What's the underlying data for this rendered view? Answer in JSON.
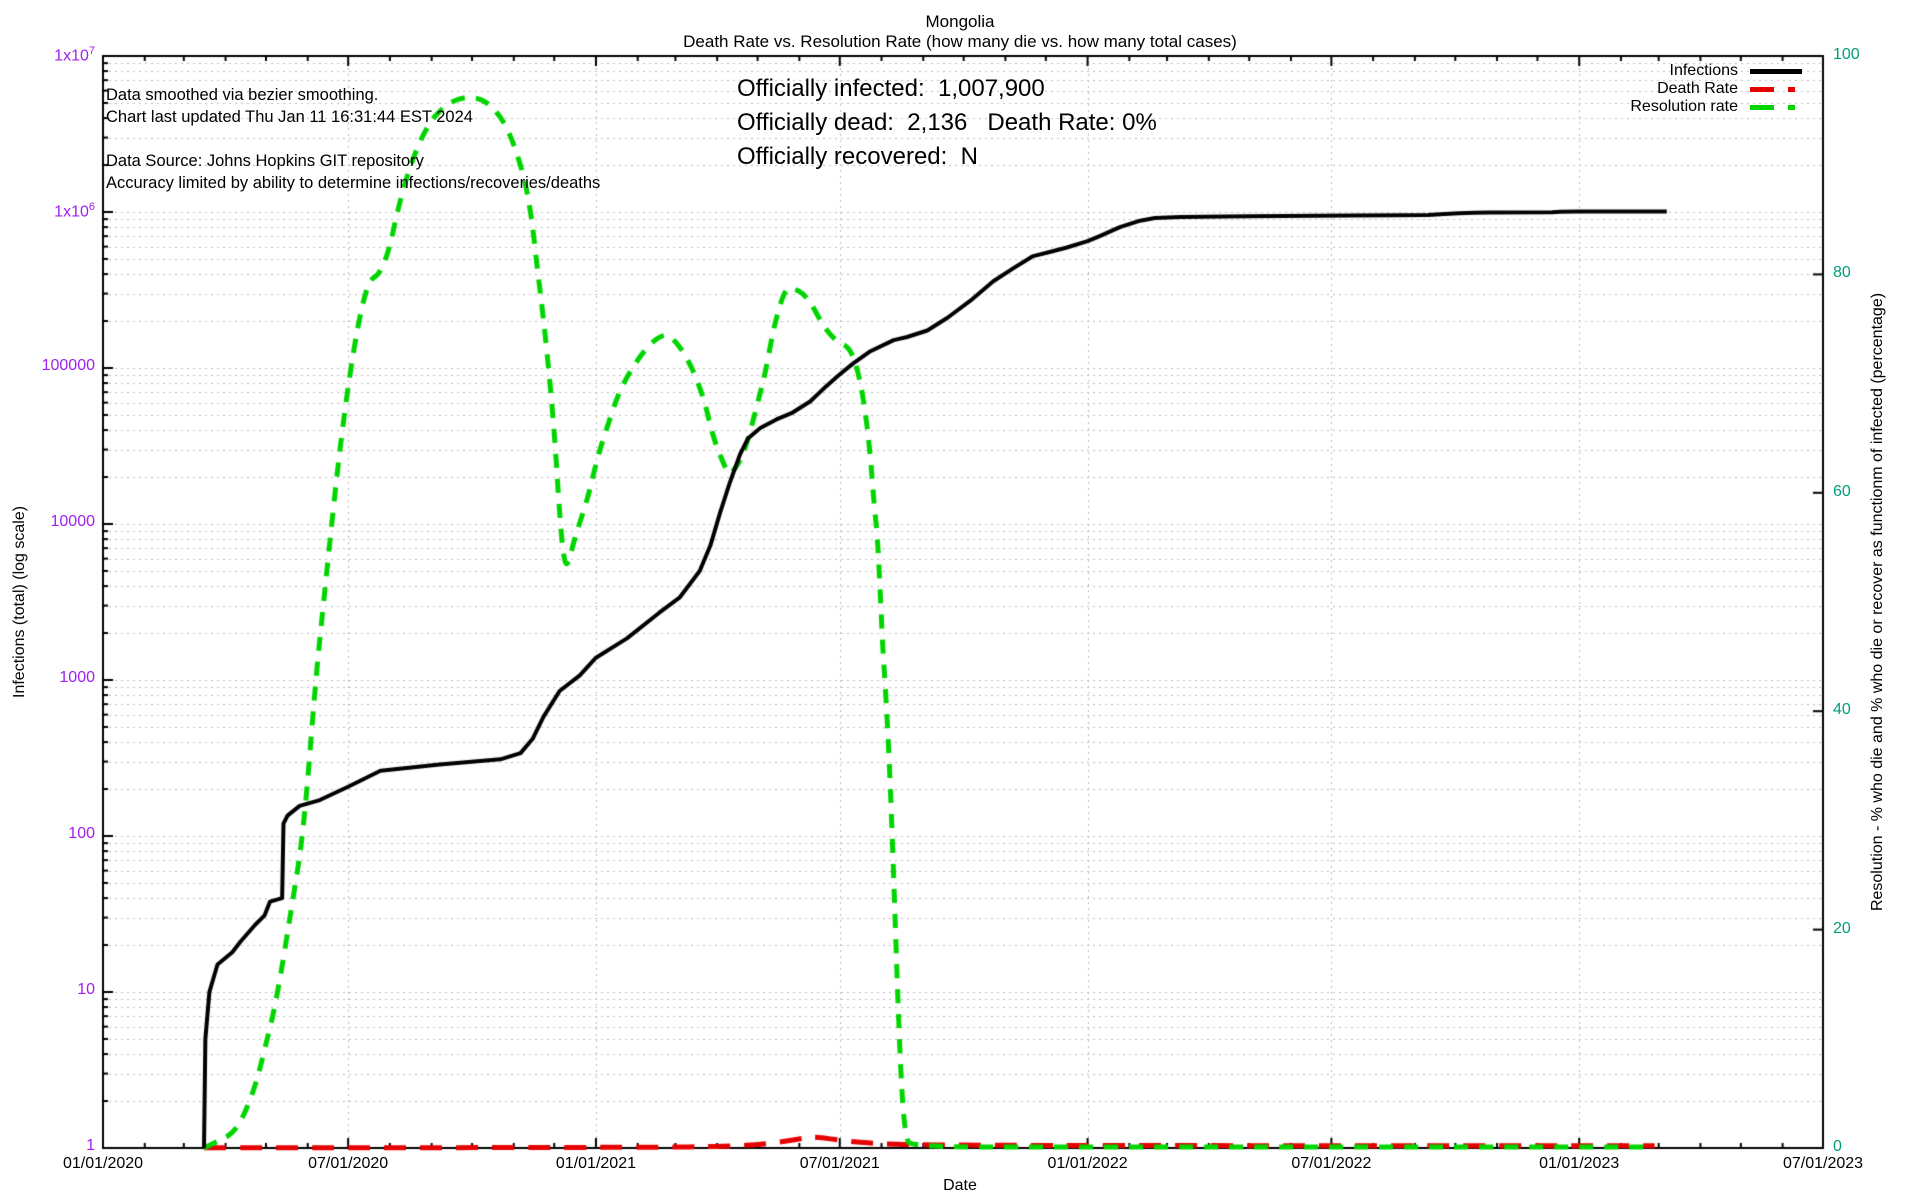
{
  "annotations": {
    "lines": [
      "Data smoothed via bezier smoothing.",
      "Chart last updated Thu Jan 11 16:31:44 EST 2024",
      "",
      "Data Source: Johns Hopkins GIT repository",
      "Accuracy limited by ability to determine infections/recoveries/deaths"
    ]
  },
  "stats": {
    "lines": [
      "Officially infected:  1,007,900",
      "Officially dead:  2,136   Death Rate: 0%",
      "Officially recovered:  N"
    ]
  },
  "chart_data": {
    "type": "line",
    "title": "Mongolia",
    "subtitle": "Death Rate vs. Resolution Rate (how many die vs. how many total cases)",
    "xlabel": "Date",
    "ylabel_left": "Infections (total) (log scale)",
    "ylabel_right": "Resolution - % who die and % who die or recover as functionm of infected (percentage)",
    "x_axis": {
      "start_label": "01/01/2020",
      "end_label": "07/01/2023",
      "total_days": 1277,
      "major_tick_days": [
        0,
        182,
        366,
        547,
        731,
        912,
        1096,
        1277
      ],
      "major_tick_labels": [
        "01/01/2020",
        "07/01/2020",
        "01/01/2021",
        "07/01/2021",
        "01/01/2022",
        "07/01/2022",
        "01/01/2023",
        "07/01/2023"
      ],
      "minor_ticks": "monthly",
      "grid": "dotted vertical at major ticks"
    },
    "y_axis_left": {
      "scale": "log",
      "range": [
        1,
        10000000
      ],
      "tick_values": [
        1,
        10,
        100,
        1000,
        10000,
        100000,
        1000000,
        10000000
      ],
      "tick_labels": [
        "1",
        "10",
        "100",
        "1000",
        "10000",
        "100000",
        "1x10^6",
        "1x10^7"
      ],
      "label_color": "#a020f0",
      "grid": "dotted horizontal at major and minor log ticks"
    },
    "y_axis_right": {
      "scale": "linear",
      "range": [
        0,
        100
      ],
      "tick_values": [
        0,
        20,
        40,
        60,
        80,
        100
      ],
      "tick_labels": [
        "0",
        "20",
        "40",
        "60",
        "80",
        "100"
      ],
      "label_color": "#009e7a"
    },
    "colors": {
      "grid": "#bcbcbc",
      "border": "#000000"
    },
    "series": [
      {
        "name": "Infections",
        "color": "#000000",
        "style": "solid",
        "axis": "left",
        "points": [
          [
            75,
            1
          ],
          [
            76,
            5
          ],
          [
            79,
            10
          ],
          [
            85,
            15
          ],
          [
            96,
            18
          ],
          [
            102,
            21
          ],
          [
            113,
            27
          ],
          [
            120,
            31
          ],
          [
            124,
            38
          ],
          [
            133,
            40
          ],
          [
            134,
            120
          ],
          [
            137,
            135
          ],
          [
            146,
            156
          ],
          [
            161,
            170
          ],
          [
            182,
            207
          ],
          [
            206,
            262
          ],
          [
            250,
            287
          ],
          [
            295,
            310
          ],
          [
            310,
            340
          ],
          [
            319,
            420
          ],
          [
            327,
            580
          ],
          [
            339,
            850
          ],
          [
            354,
            1070
          ],
          [
            366,
            1390
          ],
          [
            389,
            1850
          ],
          [
            413,
            2700
          ],
          [
            428,
            3370
          ],
          [
            443,
            5000
          ],
          [
            451,
            7300
          ],
          [
            458,
            11700
          ],
          [
            465,
            18000
          ],
          [
            473,
            28000
          ],
          [
            479,
            35500
          ],
          [
            488,
            41300
          ],
          [
            500,
            46800
          ],
          [
            512,
            51800
          ],
          [
            525,
            61000
          ],
          [
            537,
            76500
          ],
          [
            546,
            89500
          ],
          [
            557,
            107000
          ],
          [
            569,
            127000
          ],
          [
            587,
            151000
          ],
          [
            597,
            158000
          ],
          [
            612,
            174000
          ],
          [
            627,
            210000
          ],
          [
            644,
            270000
          ],
          [
            661,
            360000
          ],
          [
            676,
            437000
          ],
          [
            690,
            519000
          ],
          [
            705,
            560000
          ],
          [
            715,
            590000
          ],
          [
            731,
            650000
          ],
          [
            740,
            700000
          ],
          [
            755,
            800000
          ],
          [
            770,
            880000
          ],
          [
            781,
            915000
          ],
          [
            800,
            930000
          ],
          [
            851,
            940000
          ],
          [
            926,
            948000
          ],
          [
            963,
            953000
          ],
          [
            984,
            958000
          ],
          [
            996,
            972000
          ],
          [
            1007,
            982000
          ],
          [
            1018,
            990000
          ],
          [
            1030,
            994000
          ],
          [
            1076,
            996000
          ],
          [
            1082,
            1004000
          ],
          [
            1096,
            1006000
          ],
          [
            1161,
            1007900
          ]
        ]
      },
      {
        "name": "Death Rate",
        "color": "#e60000",
        "style": "dashed",
        "axis": "right",
        "points": [
          [
            75,
            0.02
          ],
          [
            150,
            0.02
          ],
          [
            250,
            0.03
          ],
          [
            350,
            0.05
          ],
          [
            420,
            0.08
          ],
          [
            450,
            0.12
          ],
          [
            470,
            0.2
          ],
          [
            485,
            0.3
          ],
          [
            495,
            0.42
          ],
          [
            505,
            0.58
          ],
          [
            515,
            0.8
          ],
          [
            523,
            0.95
          ],
          [
            528,
            1.0
          ],
          [
            535,
            0.92
          ],
          [
            545,
            0.75
          ],
          [
            555,
            0.6
          ],
          [
            565,
            0.48
          ],
          [
            580,
            0.38
          ],
          [
            600,
            0.3
          ],
          [
            640,
            0.26
          ],
          [
            700,
            0.23
          ],
          [
            800,
            0.22
          ],
          [
            900,
            0.21
          ],
          [
            1050,
            0.21
          ],
          [
            1152,
            0.21
          ]
        ]
      },
      {
        "name": "Resolution rate",
        "color": "#00d500",
        "style": "dashed",
        "axis": "right",
        "points": [
          [
            75,
            0
          ],
          [
            85,
            0.6
          ],
          [
            95,
            1.2
          ],
          [
            103,
            2.5
          ],
          [
            113,
            5.6
          ],
          [
            120,
            9
          ],
          [
            129,
            13.6
          ],
          [
            140,
            22
          ],
          [
            149,
            29
          ],
          [
            158,
            43
          ],
          [
            163,
            49
          ],
          [
            168,
            55
          ],
          [
            174,
            62
          ],
          [
            180,
            68
          ],
          [
            186,
            73
          ],
          [
            192,
            77
          ],
          [
            198,
            79.5
          ],
          [
            205,
            80
          ],
          [
            212,
            82
          ],
          [
            219,
            86
          ],
          [
            228,
            90
          ],
          [
            240,
            93.5
          ],
          [
            252,
            95.3
          ],
          [
            265,
            96.2
          ],
          [
            280,
            96.2
          ],
          [
            292,
            95
          ],
          [
            302,
            93
          ],
          [
            312,
            89.3
          ],
          [
            318,
            85.5
          ],
          [
            322,
            81
          ],
          [
            327,
            76
          ],
          [
            332,
            70
          ],
          [
            336,
            64
          ],
          [
            339,
            58
          ],
          [
            342,
            54
          ],
          [
            345,
            53.2
          ],
          [
            350,
            55.8
          ],
          [
            360,
            59.5
          ],
          [
            367,
            63.2
          ],
          [
            374,
            65.9
          ],
          [
            384,
            69.6
          ],
          [
            400,
            72.8
          ],
          [
            412,
            74.3
          ],
          [
            421,
            74.5
          ],
          [
            434,
            72.4
          ],
          [
            446,
            68.8
          ],
          [
            453,
            65
          ],
          [
            463,
            62
          ],
          [
            466,
            61.6
          ],
          [
            476,
            63.5
          ],
          [
            486,
            68.2
          ],
          [
            492,
            71.1
          ],
          [
            498,
            75.2
          ],
          [
            506,
            78.6
          ],
          [
            512,
            78.8
          ],
          [
            523,
            78
          ],
          [
            535,
            75.2
          ],
          [
            545,
            73.8
          ],
          [
            555,
            73.3
          ],
          [
            562,
            70.5
          ],
          [
            567,
            66.5
          ],
          [
            570,
            63
          ],
          [
            572,
            59.6
          ],
          [
            575,
            56
          ],
          [
            577,
            51
          ],
          [
            579,
            45.6
          ],
          [
            581,
            42
          ],
          [
            584,
            35
          ],
          [
            587,
            25
          ],
          [
            590,
            14
          ],
          [
            593,
            5
          ],
          [
            596,
            1
          ],
          [
            600,
            0.1
          ],
          [
            700,
            0.1
          ],
          [
            900,
            0.1
          ],
          [
            1148,
            0.1
          ]
        ]
      }
    ],
    "legend_position": "top-right inside plot"
  }
}
